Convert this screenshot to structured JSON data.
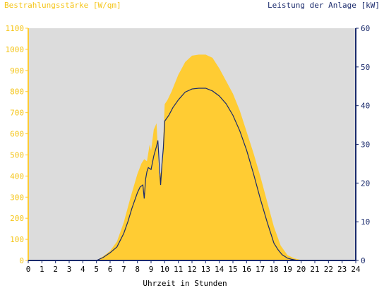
{
  "chart_data": {
    "type": "area",
    "title_left": "Bestrahlungsstärke [W/qm]",
    "title_right": "Leistung der Anlage [kW]",
    "xlabel": "Uhrzeit in Stunden",
    "x_ticks": [
      "0",
      "1",
      "2",
      "3",
      "4",
      "5",
      "6",
      "7",
      "8",
      "9",
      "10",
      "11",
      "12",
      "13",
      "14",
      "15",
      "16",
      "17",
      "18",
      "19",
      "20",
      "21",
      "22",
      "23",
      "24"
    ],
    "xlim": [
      0,
      24
    ],
    "y_left": {
      "ticks": [
        0,
        100,
        200,
        300,
        400,
        500,
        600,
        700,
        800,
        900,
        1000,
        1100
      ],
      "lim": [
        0,
        1100
      ]
    },
    "y_right": {
      "ticks": [
        0,
        10,
        20,
        30,
        40,
        50,
        60
      ],
      "lim": [
        0,
        60
      ]
    },
    "grid": false,
    "colors": {
      "plot_bg": "#dcdcdc",
      "irradiance": "#ffcc33",
      "power": "#1a2a6c",
      "left_axis_text": "#f5c518",
      "right_axis": "#1a2a6c"
    },
    "series": [
      {
        "name": "Bestrahlungsstärke [W/qm]",
        "axis": "left",
        "style": "area",
        "x": [
          0,
          5,
          5.5,
          6,
          6.5,
          7,
          7.5,
          8,
          8.3,
          8.5,
          8.7,
          8.9,
          9,
          9.2,
          9.4,
          9.6,
          9.8,
          10,
          10.2,
          10.5,
          11,
          11.5,
          12,
          12.5,
          13,
          13.5,
          14,
          14.5,
          15,
          15.5,
          16,
          16.5,
          17,
          17.5,
          18,
          18.5,
          19,
          19.5,
          20,
          20.5,
          21,
          24
        ],
        "y": [
          0,
          0,
          20,
          45,
          90,
          180,
          300,
          410,
          460,
          480,
          470,
          550,
          520,
          620,
          650,
          400,
          430,
          740,
          760,
          800,
          880,
          940,
          970,
          975,
          975,
          960,
          910,
          850,
          790,
          710,
          610,
          510,
          400,
          280,
          160,
          70,
          25,
          10,
          2,
          0,
          0,
          0
        ]
      },
      {
        "name": "Leistung der Anlage [kW]",
        "axis": "right",
        "style": "line",
        "x": [
          0,
          5,
          5.5,
          6,
          6.5,
          7,
          7.3,
          7.6,
          8,
          8.2,
          8.4,
          8.5,
          8.6,
          8.7,
          8.8,
          9,
          9.2,
          9.4,
          9.5,
          9.6,
          9.7,
          9.8,
          9.9,
          10,
          10.3,
          10.6,
          11,
          11.5,
          12,
          12.5,
          13,
          13.5,
          14,
          14.5,
          15,
          15.5,
          16,
          16.5,
          17,
          17.5,
          18,
          18.3,
          18.6,
          19,
          19.3,
          19.6,
          20,
          20.5,
          21,
          24
        ],
        "y": [
          0,
          0,
          0.8,
          2,
          3.5,
          7,
          10,
          13.5,
          17.5,
          19,
          19.5,
          16,
          21,
          23,
          24,
          23.5,
          27,
          29.5,
          31,
          25,
          19.5,
          25,
          29,
          36,
          37.5,
          39.5,
          41.5,
          43.5,
          44.3,
          44.5,
          44.5,
          43.8,
          42.5,
          40.5,
          37.5,
          33.5,
          28.5,
          22.5,
          16,
          10,
          4.5,
          2.8,
          1.5,
          0.6,
          0.3,
          0.1,
          0,
          0,
          0,
          0
        ]
      }
    ]
  }
}
